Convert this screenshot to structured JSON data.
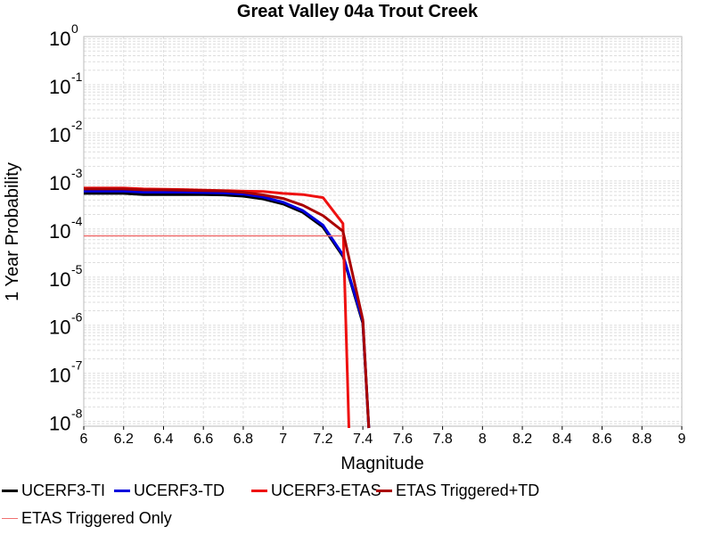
{
  "chart_data": {
    "type": "line",
    "title": "Great Valley 04a Trout Creek",
    "xlabel": "Magnitude",
    "ylabel": "1 Year Probability",
    "xlim": [
      6,
      9
    ],
    "ylim_log10": [
      -8.1,
      0
    ],
    "y_scale": "log",
    "grid": true,
    "x_ticks": [
      "6",
      "6.2",
      "6.4",
      "6.6",
      "6.8",
      "7",
      "7.2",
      "7.4",
      "7.6",
      "7.8",
      "8",
      "8.2",
      "8.4",
      "8.6",
      "8.8",
      "9"
    ],
    "y_ticks": [
      {
        "base": "10",
        "exp": "0",
        "log": 0
      },
      {
        "base": "10",
        "exp": "-1",
        "log": -1
      },
      {
        "base": "10",
        "exp": "-2",
        "log": -2
      },
      {
        "base": "10",
        "exp": "-3",
        "log": -3
      },
      {
        "base": "10",
        "exp": "-4",
        "log": -4
      },
      {
        "base": "10",
        "exp": "-5",
        "log": -5
      },
      {
        "base": "10",
        "exp": "-6",
        "log": -6
      },
      {
        "base": "10",
        "exp": "-7",
        "log": -7
      },
      {
        "base": "10",
        "exp": "-8",
        "log": -8
      }
    ],
    "x": [
      6.0,
      6.1,
      6.2,
      6.3,
      6.4,
      6.5,
      6.6,
      6.7,
      6.8,
      6.9,
      7.0,
      7.1,
      7.2,
      7.3,
      7.4
    ],
    "series": [
      {
        "name": "UCERF3-TI",
        "color": "#000000",
        "width": 3,
        "values": [
          0.00055,
          0.00055,
          0.00055,
          0.00052,
          0.00052,
          0.00052,
          0.00052,
          0.00051,
          0.00048,
          0.00042,
          0.00033,
          0.00022,
          0.00011,
          2.7e-05,
          1.1e-06
        ]
      },
      {
        "name": "UCERF3-TD",
        "color": "#0000dd",
        "width": 3,
        "values": [
          0.00061,
          0.00061,
          0.00061,
          0.00058,
          0.00058,
          0.00058,
          0.00057,
          0.00056,
          0.00053,
          0.00046,
          0.00036,
          0.00024,
          0.00012,
          2.9e-05,
          1.2e-06
        ]
      },
      {
        "name": "UCERF3-ETAS",
        "color": "#ee1111",
        "width": 3,
        "values": [
          0.00071,
          0.00071,
          0.00071,
          0.00068,
          0.00067,
          0.00066,
          0.00064,
          0.00063,
          0.00061,
          0.0006,
          0.00055,
          0.00052,
          0.00045,
          0.00013,
          null
        ],
        "drop_x": 7.33
      },
      {
        "name": "ETAS Triggered+TD",
        "color": "#aa0000",
        "width": 3,
        "values": [
          0.00068,
          0.00068,
          0.00068,
          0.00065,
          0.00065,
          0.00064,
          0.00063,
          0.00062,
          0.00058,
          0.00051,
          0.00043,
          0.00031,
          0.00019,
          9e-05,
          1.3e-06
        ]
      },
      {
        "name": "ETAS Triggered Only",
        "color": "#f07070",
        "width": 1.5,
        "values": [
          7.2e-05,
          7.2e-05,
          7.2e-05,
          7.2e-05,
          7.2e-05,
          7.2e-05,
          7.2e-05,
          7.2e-05,
          7.2e-05,
          7.2e-05,
          7.2e-05,
          7.2e-05,
          7.2e-05,
          7.2e-05,
          null
        ]
      }
    ],
    "legend_position": "bottom"
  }
}
